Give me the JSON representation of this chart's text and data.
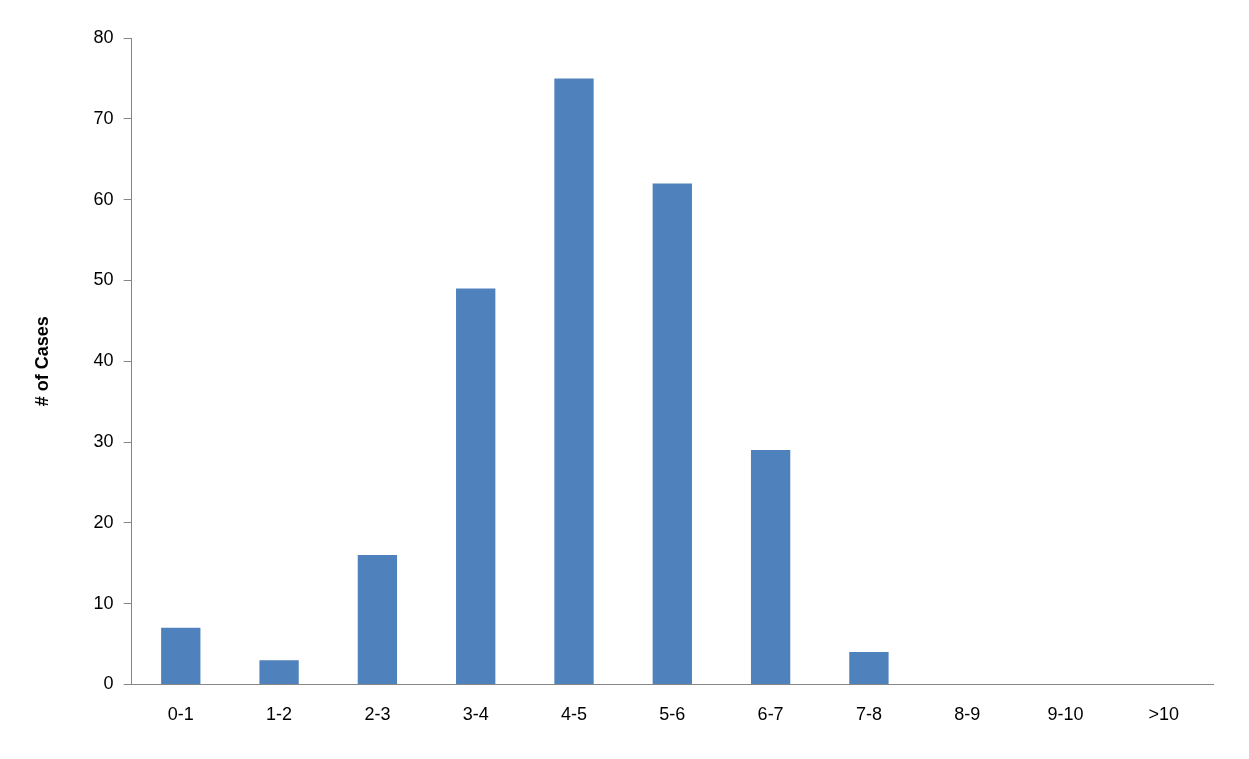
{
  "chart_data": {
    "type": "bar",
    "ylabel": "# of Cases",
    "categories": [
      "0-1",
      "1-2",
      "2-3",
      "3-4",
      "4-5",
      "5-6",
      "6-7",
      "7-8",
      "8-9",
      "9-10",
      ">10"
    ],
    "values": [
      7,
      3,
      16,
      49,
      75,
      62,
      29,
      4,
      0,
      0,
      0
    ],
    "color": "#4f81bd",
    "ylim": [
      0,
      80
    ],
    "yticks": [
      0,
      10,
      20,
      30,
      40,
      50,
      60,
      70,
      80
    ],
    "grid": false,
    "legend": false
  }
}
